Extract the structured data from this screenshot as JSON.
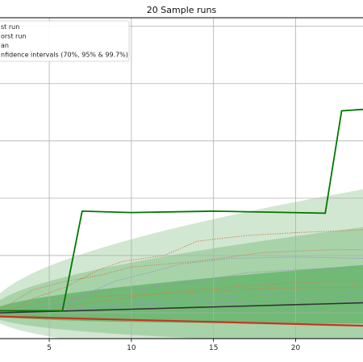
{
  "chart_data": {
    "type": "line",
    "title": "20 Sample runs",
    "xlim": [
      2.0,
      24.1
    ],
    "ylim": [
      -0.9,
      10.3
    ],
    "x_ticks": [
      5,
      10,
      15,
      20
    ],
    "x_tick_labels": [
      "5",
      "10",
      "15",
      "20"
    ],
    "grid": true,
    "legend": {
      "placement": "top-left",
      "entries": [
        "orst run",
        "an",
        "nfidence intervals (70%, 95% & 99.7%)"
      ],
      "entries_leading": [
        "st run"
      ]
    },
    "confidence_band_colors": [
      "#cfe6cf",
      "#a5d2a6",
      "#6db872"
    ],
    "best_run": {
      "name": "",
      "color": "#007700",
      "points": [
        [
          2.0,
          0.07
        ],
        [
          5.8,
          0.07
        ],
        [
          7.0,
          3.55
        ],
        [
          10.0,
          3.5
        ],
        [
          15.0,
          3.55
        ],
        [
          21.8,
          3.48
        ],
        [
          22.8,
          7.05
        ],
        [
          24.1,
          7.1
        ]
      ]
    },
    "worst_run": {
      "name": "",
      "color": "#cc3322",
      "points": [
        [
          2.0,
          -0.13
        ],
        [
          24.1,
          -0.45
        ]
      ]
    },
    "mean_run": {
      "name": "",
      "color": "#333333",
      "points": [
        [
          2.0,
          0.0
        ],
        [
          24.1,
          0.35
        ]
      ]
    },
    "sample_runs": [
      {
        "color": "#c9855c",
        "points": [
          [
            2,
            -0.1
          ],
          [
            4,
            0.5
          ],
          [
            6,
            0.9
          ],
          [
            8,
            1.5
          ],
          [
            9.5,
            1.8
          ],
          [
            12,
            2.0
          ],
          [
            14,
            2.5
          ],
          [
            17,
            2.7
          ],
          [
            20,
            2.8
          ],
          [
            24.1,
            2.9
          ]
        ]
      },
      {
        "color": "#8a9bc8",
        "points": [
          [
            2,
            0.0
          ],
          [
            5,
            0.1
          ],
          [
            7,
            0.6
          ],
          [
            9,
            1.1
          ],
          [
            11,
            1.4
          ],
          [
            13,
            1.7
          ],
          [
            16,
            1.9
          ],
          [
            20,
            1.95
          ],
          [
            24.1,
            1.9
          ]
        ]
      },
      {
        "color": "#c9855c",
        "points": [
          [
            2,
            0.1
          ],
          [
            4,
            0.8
          ],
          [
            6,
            1.1
          ],
          [
            8,
            1.3
          ],
          [
            10,
            1.6
          ],
          [
            14,
            1.8
          ],
          [
            18,
            2.1
          ],
          [
            22,
            2.2
          ],
          [
            24.1,
            2.2
          ]
        ]
      },
      {
        "color": "#9a8fbf",
        "points": [
          [
            2,
            0.0
          ],
          [
            6,
            0.3
          ],
          [
            8,
            0.8
          ],
          [
            10,
            0.8
          ],
          [
            14,
            1.1
          ],
          [
            17,
            1.4
          ],
          [
            20,
            1.5
          ],
          [
            24.1,
            1.6
          ]
        ]
      },
      {
        "color": "#c9855c",
        "points": [
          [
            2,
            0.0
          ],
          [
            5,
            0.1
          ],
          [
            8,
            0.4
          ],
          [
            12,
            0.7
          ],
          [
            16,
            0.9
          ],
          [
            20,
            1.05
          ],
          [
            24.1,
            1.1
          ]
        ]
      },
      {
        "color": "#8a9bc8",
        "points": [
          [
            2,
            -0.05
          ],
          [
            6,
            0.1
          ],
          [
            9,
            0.3
          ],
          [
            12,
            0.4
          ],
          [
            15,
            0.55
          ],
          [
            19,
            0.65
          ],
          [
            24.1,
            0.7
          ]
        ]
      },
      {
        "color": "#c9855c",
        "points": [
          [
            2,
            0.05
          ],
          [
            4,
            0.3
          ],
          [
            6,
            0.5
          ],
          [
            9,
            0.6
          ],
          [
            13,
            0.7
          ],
          [
            18,
            0.85
          ],
          [
            24.1,
            0.9
          ]
        ]
      },
      {
        "color": "#9a8fbf",
        "points": [
          [
            2,
            0.0
          ],
          [
            7,
            0.15
          ],
          [
            11,
            0.3
          ],
          [
            15,
            0.35
          ],
          [
            20,
            0.4
          ],
          [
            24.1,
            0.45
          ]
        ]
      }
    ]
  }
}
